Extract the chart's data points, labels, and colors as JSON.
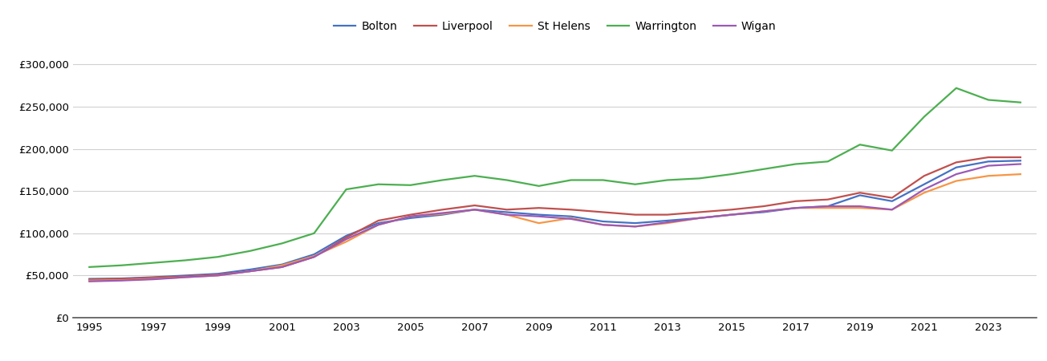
{
  "years": [
    1995,
    1996,
    1997,
    1998,
    1999,
    2000,
    2001,
    2002,
    2003,
    2004,
    2005,
    2006,
    2007,
    2008,
    2009,
    2010,
    2011,
    2012,
    2013,
    2014,
    2015,
    2016,
    2017,
    2018,
    2019,
    2020,
    2021,
    2022,
    2023,
    2024
  ],
  "Bolton": [
    46000,
    46500,
    48000,
    50000,
    52000,
    57000,
    63000,
    75000,
    97000,
    112000,
    118000,
    122000,
    128000,
    125000,
    122000,
    120000,
    114000,
    112000,
    115000,
    118000,
    122000,
    125000,
    130000,
    132000,
    145000,
    138000,
    158000,
    178000,
    185000,
    186000
  ],
  "Liverpool": [
    45000,
    46000,
    47500,
    49000,
    51000,
    55000,
    60000,
    72000,
    95000,
    115000,
    122000,
    128000,
    133000,
    128000,
    130000,
    128000,
    125000,
    122000,
    122000,
    125000,
    128000,
    132000,
    138000,
    140000,
    148000,
    142000,
    168000,
    184000,
    190000,
    190000
  ],
  "St Helens": [
    44000,
    44500,
    46000,
    48000,
    50000,
    55000,
    62000,
    73000,
    90000,
    110000,
    120000,
    123000,
    128000,
    122000,
    112000,
    118000,
    110000,
    108000,
    112000,
    118000,
    122000,
    126000,
    130000,
    130000,
    130000,
    128000,
    148000,
    162000,
    168000,
    170000
  ],
  "Warrington": [
    60000,
    62000,
    65000,
    68000,
    72000,
    79000,
    88000,
    100000,
    152000,
    158000,
    157000,
    163000,
    168000,
    163000,
    156000,
    163000,
    163000,
    158000,
    163000,
    165000,
    170000,
    176000,
    182000,
    185000,
    205000,
    198000,
    238000,
    272000,
    258000,
    255000
  ],
  "Wigan": [
    43000,
    44000,
    45500,
    48000,
    50000,
    55000,
    60000,
    72000,
    93000,
    110000,
    120000,
    124000,
    128000,
    122000,
    120000,
    117000,
    110000,
    108000,
    113000,
    118000,
    122000,
    126000,
    130000,
    132000,
    132000,
    128000,
    152000,
    170000,
    180000,
    182000
  ],
  "colors": {
    "Bolton": "#4472C4",
    "Liverpool": "#C0504D",
    "St Helens": "#F79646",
    "Warrington": "#4CAF50",
    "Wigan": "#9B59B6"
  },
  "ylim": [
    0,
    325000
  ],
  "yticks": [
    0,
    50000,
    100000,
    150000,
    200000,
    250000,
    300000
  ],
  "xticks": [
    1995,
    1997,
    1999,
    2001,
    2003,
    2005,
    2007,
    2009,
    2011,
    2013,
    2015,
    2017,
    2019,
    2021,
    2023
  ],
  "grid_color": "#d0d0d0",
  "bg_color": "#ffffff",
  "line_width": 1.6
}
